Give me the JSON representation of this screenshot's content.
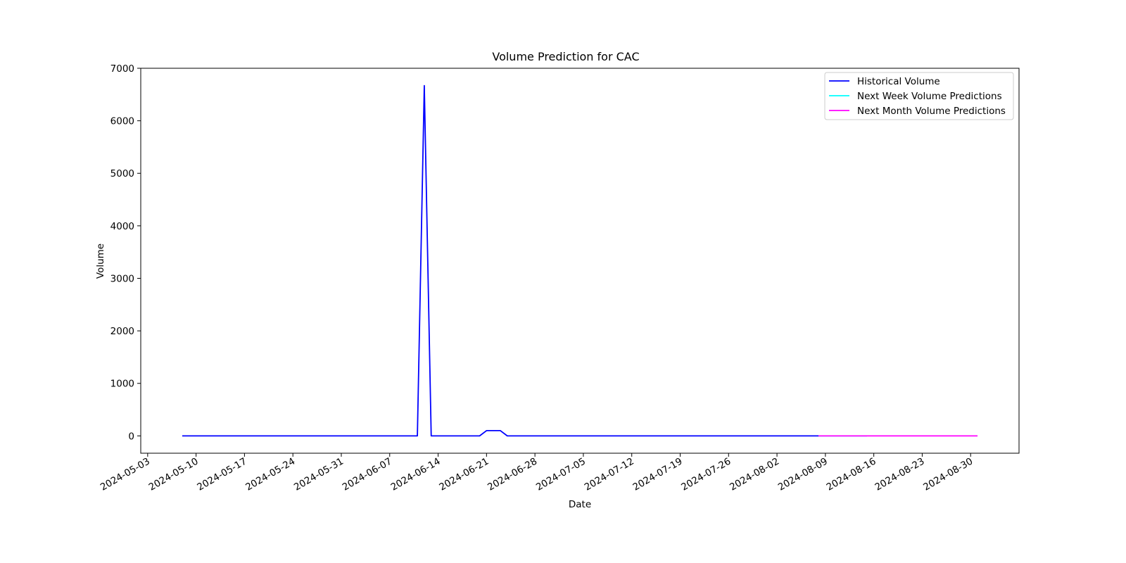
{
  "chart_data": {
    "type": "line",
    "title": "Volume Prediction for CAC",
    "xlabel": "Date",
    "ylabel": "Volume",
    "x_ticks": [
      "2024-05-03",
      "2024-05-10",
      "2024-05-17",
      "2024-05-24",
      "2024-05-31",
      "2024-06-07",
      "2024-06-14",
      "2024-06-21",
      "2024-06-28",
      "2024-07-05",
      "2024-07-12",
      "2024-07-19",
      "2024-07-26",
      "2024-08-02",
      "2024-08-09",
      "2024-08-16",
      "2024-08-23",
      "2024-08-30"
    ],
    "y_ticks": [
      0,
      1000,
      2000,
      3000,
      4000,
      5000,
      6000,
      7000
    ],
    "xlim": [
      "2024-05-02",
      "2024-09-06"
    ],
    "ylim": [
      -330,
      7000
    ],
    "grid": false,
    "legend_position": "top-right",
    "colors": {
      "historical": "#0000ff",
      "next_week": "#00ffff",
      "next_month": "#ff00ff"
    },
    "series": [
      {
        "name": "Historical Volume",
        "color": "#0000ff",
        "points": [
          [
            "2024-05-08",
            0
          ],
          [
            "2024-06-11",
            0
          ],
          [
            "2024-06-12",
            6670
          ],
          [
            "2024-06-13",
            0
          ],
          [
            "2024-06-20",
            0
          ],
          [
            "2024-06-21",
            100
          ],
          [
            "2024-06-23",
            100
          ],
          [
            "2024-06-24",
            0
          ],
          [
            "2024-08-08",
            0
          ]
        ]
      },
      {
        "name": "Next Week Volume Predictions",
        "color": "#00ffff",
        "points": [
          [
            "2024-08-08",
            0
          ],
          [
            "2024-08-15",
            0
          ]
        ]
      },
      {
        "name": "Next Month Volume Predictions",
        "color": "#ff00ff",
        "points": [
          [
            "2024-08-08",
            0
          ],
          [
            "2024-08-31",
            0
          ]
        ]
      }
    ]
  }
}
